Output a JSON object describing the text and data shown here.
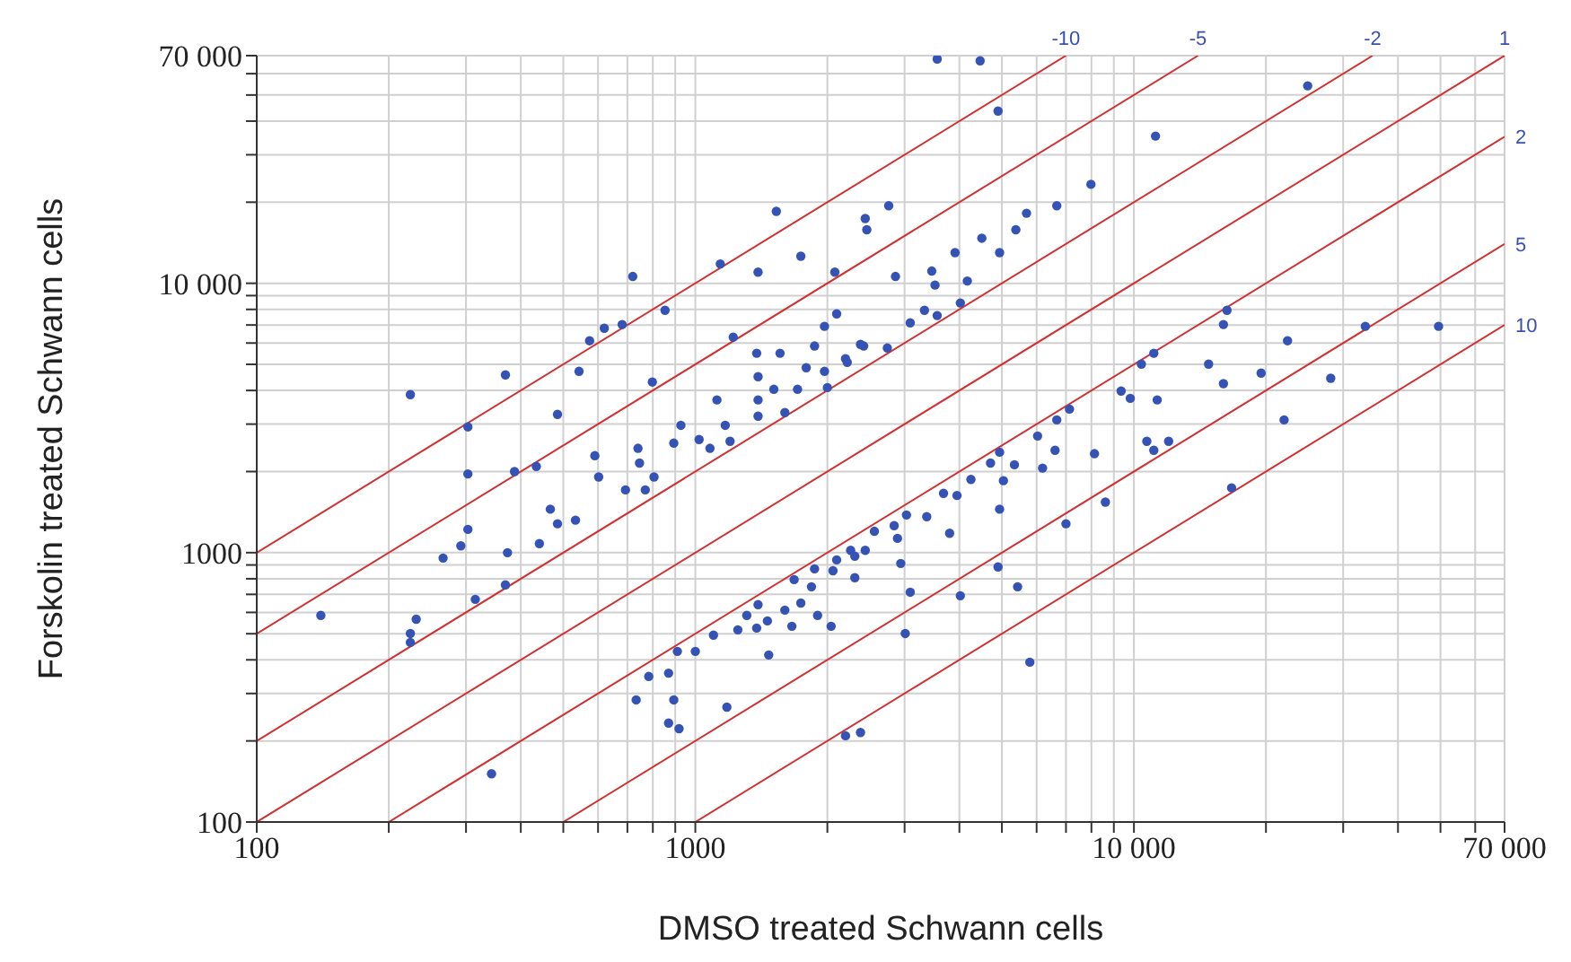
{
  "chart_data": {
    "type": "scatter",
    "xlabel": "DMSO treated Schwann cells",
    "ylabel": "Forskolin treated Schwann cells",
    "log": "xy",
    "grid": true,
    "marker": "circle",
    "xlim": [
      100,
      70000
    ],
    "ylim": [
      100,
      70000
    ],
    "xticks": [
      100,
      {
        "value": 200,
        "label": null
      },
      {
        "value": 300,
        "label": null
      },
      {
        "value": 400,
        "label": null
      },
      {
        "value": 500,
        "label": null
      },
      {
        "value": 600,
        "label": null
      },
      {
        "value": 700,
        "label": null
      },
      {
        "value": 800,
        "label": null
      },
      {
        "value": 900,
        "label": null
      },
      1000,
      {
        "value": 2000,
        "label": null
      },
      {
        "value": 3000,
        "label": null
      },
      {
        "value": 4000,
        "label": null
      },
      {
        "value": 5000,
        "label": null
      },
      {
        "value": 6000,
        "label": null
      },
      {
        "value": 7000,
        "label": null
      },
      {
        "value": 8000,
        "label": null
      },
      {
        "value": 9000,
        "label": null
      },
      {
        "value": 10000,
        "label": "10 000"
      },
      {
        "value": 20000,
        "label": null
      },
      {
        "value": 30000,
        "label": null
      },
      {
        "value": 40000,
        "label": null
      },
      {
        "value": 50000,
        "label": null
      },
      {
        "value": 60000,
        "label": null
      },
      {
        "value": 70000,
        "label": "70 000"
      }
    ],
    "yticks": [
      100,
      {
        "value": 200,
        "label": null
      },
      {
        "value": 300,
        "label": null
      },
      {
        "value": 400,
        "label": null
      },
      {
        "value": 500,
        "label": null
      },
      {
        "value": 600,
        "label": null
      },
      {
        "value": 700,
        "label": null
      },
      {
        "value": 800,
        "label": null
      },
      {
        "value": 900,
        "label": null
      },
      1000,
      {
        "value": 2000,
        "label": null
      },
      {
        "value": 3000,
        "label": null
      },
      {
        "value": 4000,
        "label": null
      },
      {
        "value": 5000,
        "label": null
      },
      {
        "value": 6000,
        "label": null
      },
      {
        "value": 7000,
        "label": null
      },
      {
        "value": 8000,
        "label": null
      },
      {
        "value": 9000,
        "label": null
      },
      {
        "value": 10000,
        "label": "10 000"
      },
      {
        "value": 20000,
        "label": null
      },
      {
        "value": 30000,
        "label": null
      },
      {
        "value": 40000,
        "label": null
      },
      {
        "value": 50000,
        "label": null
      },
      {
        "value": 60000,
        "label": null
      },
      {
        "value": 70000,
        "label": "70 000"
      }
    ],
    "series": [
      {
        "color": "#3553b5",
        "x": [
          1530,
          1140,
          1390,
          1740,
          720,
          853,
          681,
          620,
          574,
          543,
          369,
          224,
          485,
          798,
          1220,
          2080,
          2440,
          2460,
          2100,
          1970,
          2380,
          1870,
          1380,
          1560,
          1790,
          1970,
          1390,
          1510,
          1120,
          1390,
          1390,
          1600,
          2000,
          2220,
          927,
          1170,
          303,
          3560,
          4460,
          4900,
          24900,
          11200,
          7980,
          6670,
          5690,
          5380,
          4500,
          4940,
          2760,
          3910,
          3460,
          2860,
          3520,
          4170,
          4020,
          3330,
          3560,
          3090,
          2420,
          2740,
          2200,
          1710,
          16300,
          16000,
          33700,
          49500,
          22400,
          14800,
          19500,
          16000,
          28100,
          22000,
          11100,
          10400,
          9350,
          9810,
          11300,
          7130,
          6670,
          10700,
          12000,
          11100,
          8130,
          6190,
          6030,
          6610,
          5340,
          4940,
          4710,
          4250,
          5040,
          3950,
          3680,
          4940,
          8610,
          16700,
          3370,
          3030,
          2840,
          2560,
          2890,
          3800,
          7000,
          2260,
          2100,
          2310,
          1870,
          2940,
          4900,
          3090,
          4020,
          3010,
          5790,
          2200,
          2380,
          1680,
          1900,
          2040,
          1660,
          1740,
          5430,
          303,
          387,
          434,
          590,
          602,
          740,
          746,
          693,
          769,
          805,
          893,
          1020,
          1080,
          1200,
          467,
          485,
          533,
          303,
          292,
          266,
          373,
          441,
          369,
          315,
          231,
          224,
          224,
          140,
          343,
          783,
          869,
          733,
          893,
          869,
          918,
          1180,
          910,
          1000,
          1100,
          1470,
          1250,
          1380,
          1310,
          1460,
          1390,
          1600,
          1840,
          2060,
          2310,
          2440
        ],
        "values": [
          18500,
          11800,
          11000,
          12600,
          10600,
          7940,
          7030,
          6810,
          6120,
          4710,
          4570,
          3860,
          3260,
          4300,
          6310,
          11000,
          17400,
          15800,
          7700,
          6920,
          5930,
          5850,
          5500,
          5500,
          4860,
          4710,
          4500,
          4040,
          3690,
          3690,
          3210,
          3310,
          4100,
          5090,
          2970,
          2970,
          2930,
          68000,
          67000,
          43600,
          54100,
          35200,
          23300,
          19400,
          18200,
          15800,
          14700,
          13000,
          19400,
          13000,
          11100,
          10600,
          9850,
          10200,
          8450,
          7940,
          7590,
          7130,
          5850,
          5750,
          5250,
          4040,
          7940,
          7030,
          6920,
          6920,
          6120,
          5010,
          4640,
          4240,
          4440,
          3110,
          5500,
          5010,
          3980,
          3740,
          3690,
          3410,
          3110,
          2590,
          2590,
          2400,
          2330,
          2060,
          2710,
          2400,
          2120,
          2360,
          2150,
          1870,
          1850,
          1630,
          1660,
          1450,
          1540,
          1740,
          1360,
          1380,
          1260,
          1200,
          1130,
          1180,
          1280,
          1020,
          940,
          807,
          871,
          912,
          885,
          713,
          692,
          501,
          392,
          209,
          215,
          794,
          585,
          533,
          533,
          650,
          747,
          1960,
          2000,
          2090,
          2290,
          1910,
          2440,
          2150,
          1710,
          1710,
          1910,
          2550,
          2630,
          2440,
          2590,
          1450,
          1280,
          1320,
          1220,
          1060,
          955,
          1000,
          1080,
          759,
          671,
          566,
          501,
          464,
          585,
          151,
          347,
          357,
          284,
          284,
          233,
          222,
          267,
          430,
          430,
          494,
          417,
          517,
          525,
          585,
          558,
          641,
          612,
          747,
          857,
          970,
          1020
        ]
      },
      {
        "type": "line",
        "name": "-10",
        "marker": "none",
        "color": "#d03030",
        "x": [
          100,
          7000
        ],
        "values": [
          1000,
          70000
        ]
      },
      {
        "type": "line",
        "name": "-5",
        "marker": "none",
        "color": "#d03030",
        "x": [
          100,
          14000
        ],
        "values": [
          500,
          70000
        ]
      },
      {
        "type": "line",
        "name": "-2",
        "marker": "none",
        "color": "#d03030",
        "x": [
          100,
          35000
        ],
        "values": [
          200,
          70000
        ]
      },
      {
        "type": "line",
        "name": "1",
        "marker": "none",
        "color": "#d03030",
        "x": [
          100,
          70000
        ],
        "values": [
          100,
          70000
        ]
      },
      {
        "type": "line",
        "name": "2",
        "marker": "none",
        "color": "#d03030",
        "x": [
          200,
          70000
        ],
        "values": [
          100,
          35000
        ]
      },
      {
        "type": "line",
        "name": "5",
        "marker": "none",
        "color": "#d03030",
        "x": [
          500,
          70000
        ],
        "values": [
          100,
          14000
        ]
      },
      {
        "type": "line",
        "name": "10",
        "marker": "none",
        "color": "#d03030",
        "x": [
          1000,
          70000
        ],
        "values": [
          100,
          7000
        ]
      }
    ]
  }
}
